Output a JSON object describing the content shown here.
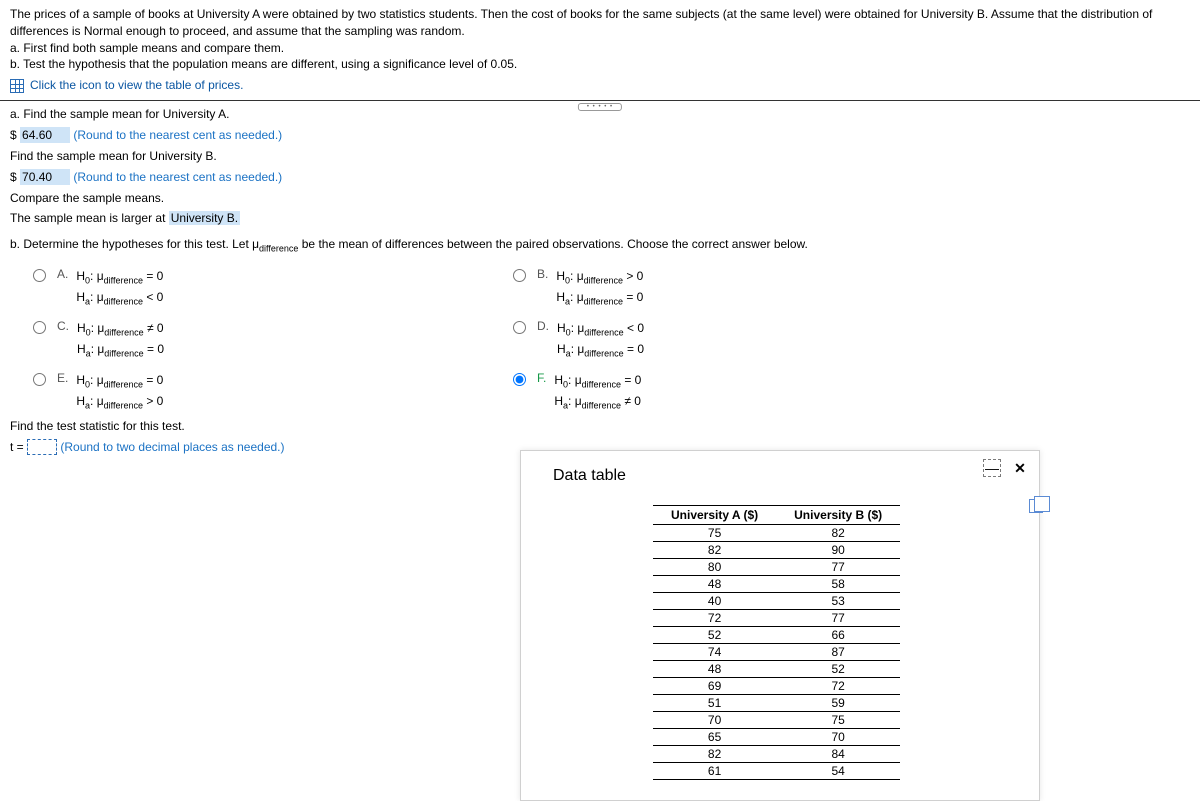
{
  "intro": {
    "p1": "The prices of a sample of books at University A were obtained by two statistics students. Then the cost of books for the same subjects (at the same level) were obtained for University B. Assume that the distribution of differences is Normal enough to proceed, and assume that the sampling was random.",
    "a": "a. First find both sample means and compare them.",
    "b": "b. Test the hypothesis that the population means are different, using a significance level of 0.05.",
    "link": "Click the icon to view the table of prices."
  },
  "partA": {
    "q1": "a. Find the sample mean for University A.",
    "dollar": "$",
    "v1": "64.60",
    "round_cent": "(Round to the nearest cent as needed.)",
    "q2": "Find the sample mean for University B.",
    "v2": "70.40",
    "q3": "Compare the sample means.",
    "q3a": "The sample mean is larger at ",
    "q3v": "University B."
  },
  "partB": {
    "prompt": "b. Determine the hypotheses for this test. Let μdifference be the mean of differences between the paired observations. Choose the correct answer below.",
    "options": {
      "A": {
        "h0": "= 0",
        "ha": "< 0"
      },
      "B": {
        "h0": "> 0",
        "ha": "= 0"
      },
      "C": {
        "h0": "≠ 0",
        "ha": "= 0"
      },
      "D": {
        "h0": "< 0",
        "ha": "= 0"
      },
      "E": {
        "h0": "= 0",
        "ha": "> 0"
      },
      "F": {
        "h0": "= 0",
        "ha": "≠ 0"
      }
    },
    "selected": "F"
  },
  "tstat": {
    "label": "Find the test statistic for this test.",
    "t_eq": "t =",
    "hint": "(Round to two decimal places as needed.)",
    "value": ""
  },
  "dataPanel": {
    "title": "Data table",
    "col1": "University A ($)",
    "col2": "University B ($)",
    "rows": [
      [
        75,
        82
      ],
      [
        82,
        90
      ],
      [
        80,
        77
      ],
      [
        48,
        58
      ],
      [
        40,
        53
      ],
      [
        72,
        77
      ],
      [
        52,
        66
      ],
      [
        74,
        87
      ],
      [
        48,
        52
      ],
      [
        69,
        72
      ],
      [
        51,
        59
      ],
      [
        70,
        75
      ],
      [
        65,
        70
      ],
      [
        82,
        84
      ],
      [
        61,
        54
      ]
    ]
  }
}
